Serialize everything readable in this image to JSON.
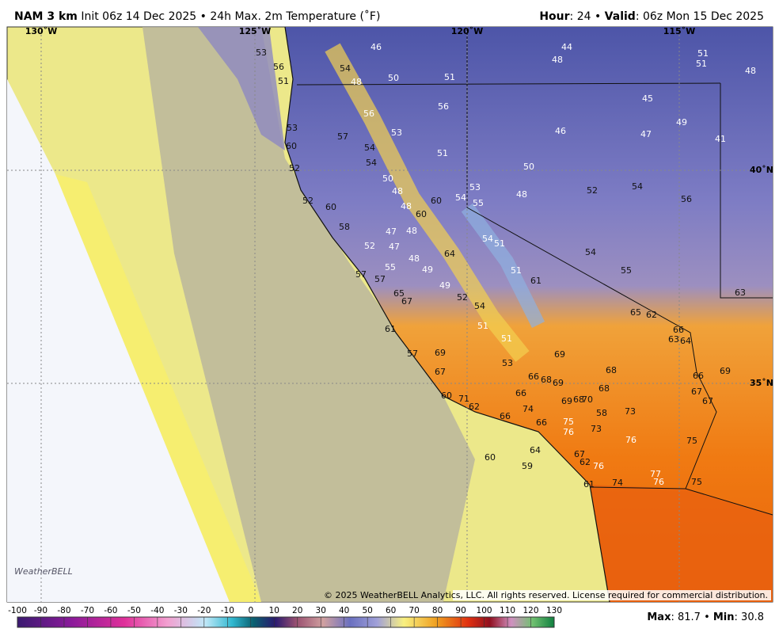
{
  "header": {
    "model": "NAM 3 km",
    "description": "Init 06z 14 Dec 2025 • 24h Max. 2m Temperature (˚F)",
    "hour_label": "Hour",
    "hour_value": ": 24 • ",
    "valid_label": "Valid",
    "valid_value": ": 06z Mon 15 Dec 2025"
  },
  "map": {
    "grid_labels": [
      "130˚W",
      "125˚W",
      "120˚W",
      "115˚W",
      "40˚N",
      "35˚N"
    ],
    "temperatures": [
      "53",
      "56",
      "51",
      "54",
      "48",
      "46",
      "50",
      "51",
      "44",
      "48",
      "51",
      "51",
      "48",
      "45",
      "49",
      "47",
      "41",
      "46",
      "56",
      "56",
      "53",
      "57",
      "53",
      "60",
      "54",
      "51",
      "52",
      "54",
      "50",
      "50",
      "48",
      "53",
      "54",
      "55",
      "48",
      "52",
      "54",
      "56",
      "52",
      "60",
      "60",
      "48",
      "60",
      "58",
      "47",
      "48",
      "54",
      "51",
      "52",
      "47",
      "64",
      "48",
      "55",
      "54",
      "49",
      "51",
      "61",
      "55",
      "57",
      "57",
      "49",
      "52",
      "65",
      "67",
      "54",
      "63",
      "65",
      "62",
      "51",
      "61",
      "66",
      "63",
      "64",
      "51",
      "57",
      "69",
      "69",
      "53",
      "67",
      "66",
      "68",
      "69",
      "68",
      "66",
      "69",
      "68",
      "67",
      "60",
      "71",
      "66",
      "69",
      "68",
      "70",
      "67",
      "62",
      "74",
      "58",
      "73",
      "66",
      "66",
      "75",
      "73",
      "76",
      "76",
      "75",
      "60",
      "64",
      "67",
      "62",
      "76",
      "59",
      "77",
      "76",
      "61",
      "74",
      "75"
    ],
    "logo": "WeatherBELL",
    "copyright": "© 2025 WeatherBELL Analytics, LLC. All rights reserved. License required for commercial distribution."
  },
  "colorbar": {
    "ticks": [
      -100,
      -90,
      -80,
      -70,
      -60,
      -50,
      -40,
      -30,
      -20,
      -10,
      0,
      10,
      20,
      30,
      40,
      50,
      60,
      70,
      80,
      90,
      100,
      110,
      120,
      130
    ]
  },
  "footer": {
    "max_label": "Max",
    "max_value": ": 81.7 • ",
    "min_label": "Min",
    "min_value": ": 30.8"
  }
}
